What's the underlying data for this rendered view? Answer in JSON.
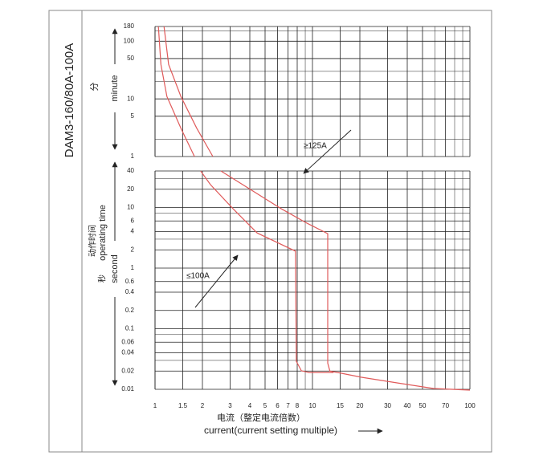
{
  "chart_data": {
    "type": "line",
    "title": "DAM3-160/80A-100A",
    "x_label": "current(current setting multiple)",
    "x_label_cn": "电流（整定电流倍数）",
    "log_x": true,
    "xlim": [
      1,
      100
    ],
    "xticks": [
      1,
      1.5,
      2,
      3,
      4,
      5,
      6,
      7,
      8,
      10,
      15,
      20,
      30,
      40,
      50,
      70,
      100
    ],
    "xminor": [
      9,
      60,
      80,
      90
    ],
    "y_label": "operating time",
    "y_label_cn": "动作时间",
    "minute_axis": {
      "label": "minute",
      "label_cn": "分",
      "ylim": [
        1,
        180
      ],
      "yticks": [
        1,
        5,
        10,
        50,
        100,
        180
      ],
      "yminor": [
        2,
        20,
        30,
        150
      ]
    },
    "second_axis": {
      "label": "second",
      "label_cn": "秒",
      "ylim": [
        0.01,
        40
      ],
      "yticks": [
        0.01,
        0.02,
        0.04,
        0.06,
        0.1,
        0.2,
        0.4,
        0.6,
        1,
        2,
        4,
        6,
        10,
        20,
        40
      ],
      "yminor": [
        0.03,
        0.08,
        3,
        8,
        30
      ]
    },
    "series": [
      {
        "name": "≤100A",
        "color": "#e05a5a",
        "minutes": {
          "x": [
            1.05,
            1.09,
            1.19,
            1.46,
            1.78
          ],
          "values": [
            180,
            39.6,
            11,
            3.1,
            1
          ]
        },
        "seconds": {
          "x": [
            1.95,
            2.25,
            3.12,
            4.45,
            7.8,
            7.9,
            8.5,
            9.5,
            13.6
          ],
          "values": [
            40,
            23.8,
            9.6,
            3.8,
            1.9,
            0.029,
            0.0202,
            0.019,
            0.019
          ]
        }
      },
      {
        "name": "≥125A",
        "color": "#e05a5a",
        "minutes": {
          "x": [
            1.14,
            1.22,
            1.46,
            1.84,
            2.33
          ],
          "values": [
            180,
            39.6,
            11,
            3.1,
            1
          ]
        },
        "seconds": {
          "x": [
            2.62,
            3.95,
            6.3,
            9.0,
            12.5,
            12.5,
            12.9,
            14.4,
            20.5,
            36.8,
            58.9,
            100
          ],
          "values": [
            40,
            20.5,
            9.6,
            5.7,
            3.7,
            0.027,
            0.02,
            0.019,
            0.0158,
            0.0124,
            0.0103,
            0.0097
          ]
        }
      }
    ]
  }
}
